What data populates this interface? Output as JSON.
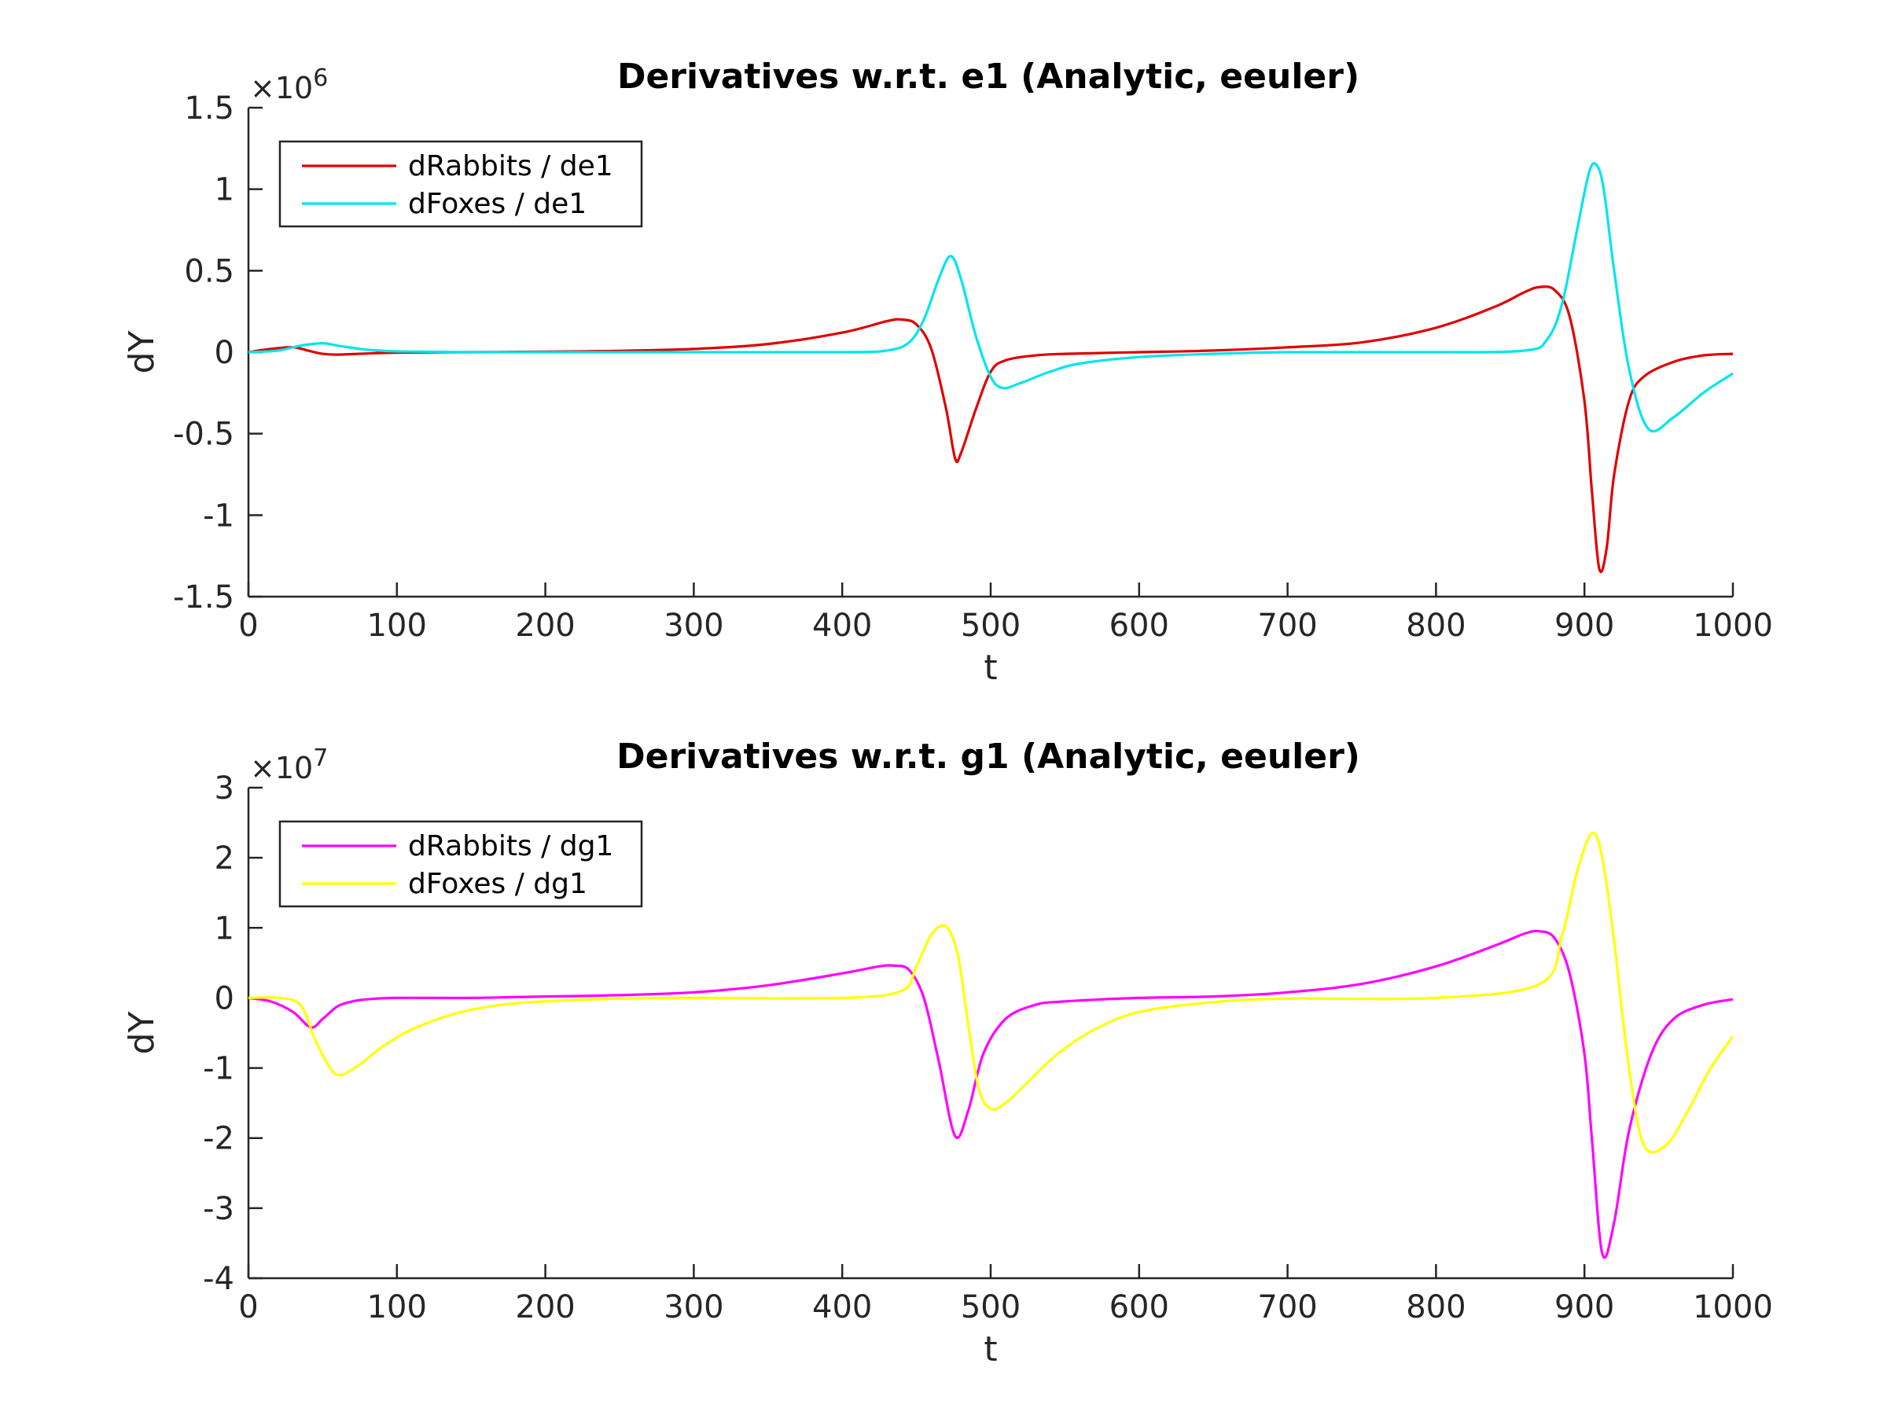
{
  "chart_data": [
    {
      "type": "line",
      "title": "Derivatives w.r.t. e1 (Analytic, eeuler)",
      "xlabel": "t",
      "ylabel": "dY",
      "xlim": [
        0,
        1000
      ],
      "ylim": [
        -1.5,
        1.5
      ],
      "x_ticks": [
        "0",
        "100",
        "200",
        "300",
        "400",
        "500",
        "600",
        "700",
        "800",
        "900",
        "1000"
      ],
      "y_ticks": [
        "1.5",
        "1",
        "0.5",
        "0",
        "-0.5",
        "-1",
        "-1.5"
      ],
      "y_exponent": {
        "base": "×10",
        "power": "6"
      },
      "legend_position": "top-left",
      "grid": false,
      "series": [
        {
          "name": "dRabbits / de1",
          "color": "#e00000",
          "x": [
            0,
            15,
            30,
            40,
            50,
            60,
            80,
            100,
            150,
            200,
            250,
            300,
            350,
            400,
            430,
            440,
            450,
            460,
            470,
            476,
            480,
            490,
            500,
            510,
            530,
            550,
            600,
            650,
            700,
            750,
            800,
            840,
            860,
            870,
            880,
            890,
            900,
            905,
            910,
            915,
            920,
            930,
            940,
            960,
            980,
            1000
          ],
          "y": [
            0,
            0.02,
            0.03,
            0.01,
            -0.01,
            -0.015,
            -0.008,
            -0.003,
            0,
            0.003,
            0.008,
            0.02,
            0.05,
            0.12,
            0.19,
            0.2,
            0.17,
            0.02,
            -0.35,
            -0.65,
            -0.62,
            -0.35,
            -0.12,
            -0.05,
            -0.02,
            -0.01,
            0,
            0.01,
            0.03,
            0.06,
            0.15,
            0.28,
            0.37,
            0.4,
            0.38,
            0.22,
            -0.3,
            -0.85,
            -1.33,
            -1.2,
            -0.75,
            -0.3,
            -0.15,
            -0.06,
            -0.02,
            -0.01
          ]
        },
        {
          "name": "dFoxes / de1",
          "color": "#00e5ee",
          "x": [
            0,
            20,
            35,
            50,
            60,
            80,
            100,
            150,
            200,
            300,
            400,
            430,
            445,
            455,
            465,
            473,
            480,
            490,
            500,
            508,
            520,
            540,
            560,
            600,
            650,
            700,
            800,
            860,
            875,
            885,
            895,
            903,
            908,
            913,
            920,
            930,
            943,
            960,
            980,
            1000
          ],
          "y": [
            0,
            0.01,
            0.04,
            0.055,
            0.04,
            0.015,
            0.005,
            0,
            0,
            0,
            0,
            0.01,
            0.06,
            0.2,
            0.45,
            0.59,
            0.45,
            0.1,
            -0.15,
            -0.22,
            -0.19,
            -0.12,
            -0.07,
            -0.03,
            -0.01,
            0,
            0,
            0.01,
            0.08,
            0.3,
            0.75,
            1.1,
            1.15,
            1.0,
            0.5,
            -0.1,
            -0.47,
            -0.4,
            -0.25,
            -0.13
          ]
        }
      ]
    },
    {
      "type": "line",
      "title": "Derivatives w.r.t. g1 (Analytic, eeuler)",
      "xlabel": "t",
      "ylabel": "dY",
      "xlim": [
        0,
        1000
      ],
      "ylim": [
        -4,
        3
      ],
      "x_ticks": [
        "0",
        "100",
        "200",
        "300",
        "400",
        "500",
        "600",
        "700",
        "800",
        "900",
        "1000"
      ],
      "y_ticks": [
        "3",
        "2",
        "1",
        "0",
        "-1",
        "-2",
        "-3",
        "-4"
      ],
      "y_exponent": {
        "base": "×10",
        "power": "7"
      },
      "legend_position": "top-left",
      "grid": false,
      "series": [
        {
          "name": "dRabbits / dg1",
          "color": "#ff00ff",
          "x": [
            0,
            15,
            30,
            42,
            50,
            60,
            70,
            80,
            100,
            150,
            200,
            250,
            300,
            350,
            400,
            425,
            435,
            445,
            455,
            465,
            476,
            485,
            495,
            510,
            530,
            550,
            600,
            650,
            700,
            750,
            800,
            840,
            860,
            870,
            880,
            890,
            900,
            905,
            912,
            920,
            930,
            945,
            960,
            980,
            1000
          ],
          "y": [
            0,
            -0.05,
            -0.2,
            -0.42,
            -0.3,
            -0.12,
            -0.05,
            -0.02,
            0,
            0,
            0.02,
            0.04,
            0.08,
            0.18,
            0.35,
            0.45,
            0.46,
            0.4,
            0,
            -0.9,
            -1.97,
            -1.6,
            -0.8,
            -0.3,
            -0.1,
            -0.05,
            0,
            0.02,
            0.08,
            0.2,
            0.45,
            0.75,
            0.92,
            0.95,
            0.85,
            0.35,
            -0.8,
            -2.0,
            -3.65,
            -3.2,
            -1.9,
            -0.8,
            -0.3,
            -0.1,
            -0.02
          ]
        },
        {
          "name": "dFoxes / dg1",
          "color": "#ffff00",
          "x": [
            0,
            20,
            35,
            45,
            55,
            62,
            75,
            90,
            110,
            140,
            170,
            200,
            250,
            300,
            400,
            440,
            450,
            460,
            470,
            478,
            485,
            492,
            500,
            510,
            525,
            545,
            570,
            600,
            650,
            700,
            800,
            870,
            885,
            895,
            905,
            912,
            920,
            930,
            940,
            955,
            970,
            985,
            1000
          ],
          "y": [
            0,
            0,
            -0.1,
            -0.6,
            -1.0,
            -1.1,
            -0.95,
            -0.7,
            -0.45,
            -0.22,
            -0.1,
            -0.05,
            -0.01,
            0,
            0,
            0.1,
            0.45,
            0.9,
            1.02,
            0.6,
            -0.4,
            -1.3,
            -1.58,
            -1.5,
            -1.2,
            -0.8,
            -0.45,
            -0.2,
            -0.06,
            -0.01,
            0,
            0.2,
            0.9,
            1.8,
            2.35,
            2.0,
            0.8,
            -1.0,
            -2.1,
            -2.1,
            -1.6,
            -1.0,
            -0.55
          ]
        }
      ]
    }
  ]
}
